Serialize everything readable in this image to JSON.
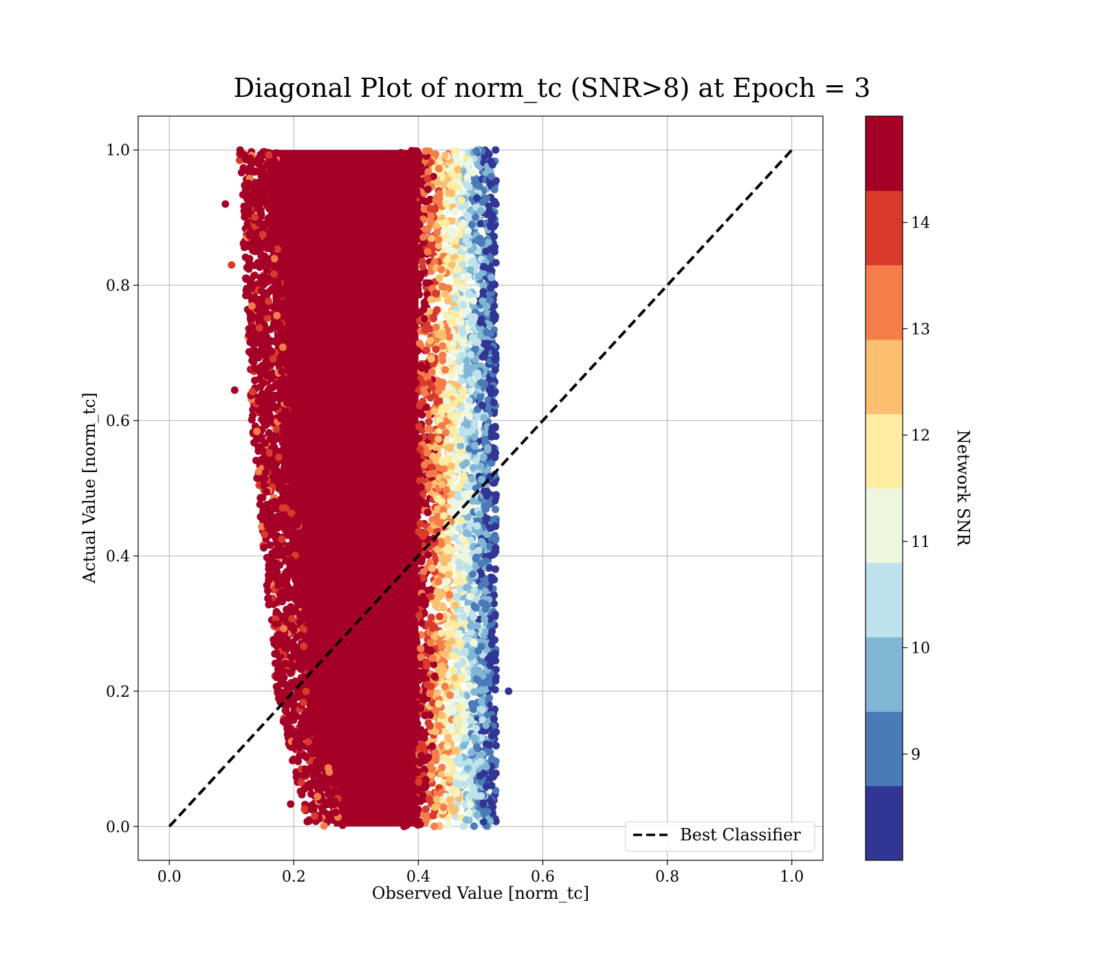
{
  "chart_data": {
    "type": "scatter",
    "title": "Diagonal Plot of norm_tc (SNR>8) at Epoch = 3",
    "xlabel": "Observed Value [norm_tc]",
    "ylabel": "Actual Value [norm_tc]",
    "xlim": [
      -0.05,
      1.05
    ],
    "ylim": [
      -0.05,
      1.05
    ],
    "x_ticks": [
      "0.0",
      "0.2",
      "0.4",
      "0.6",
      "0.8",
      "1.0"
    ],
    "y_ticks": [
      "0.0",
      "0.2",
      "0.4",
      "0.6",
      "0.8",
      "1.0"
    ],
    "grid": true,
    "legend_position": "lower-right",
    "series": [
      {
        "name": "Best Classifier",
        "style": "dashed",
        "color": "#000000",
        "x": [
          0.0,
          1.0
        ],
        "y": [
          0.0,
          1.0
        ]
      }
    ],
    "scatter_cloud": {
      "description_color_by": "Network SNR",
      "x_band_by_y": [
        {
          "y": 1.0,
          "x_min": 0.13,
          "x_max": 0.52
        },
        {
          "y": 0.8,
          "x_min": 0.14,
          "x_max": 0.52
        },
        {
          "y": 0.6,
          "x_min": 0.15,
          "x_max": 0.52
        },
        {
          "y": 0.4,
          "x_min": 0.17,
          "x_max": 0.52
        },
        {
          "y": 0.2,
          "x_min": 0.19,
          "x_max": 0.52
        },
        {
          "y": 0.0,
          "x_min": 0.24,
          "x_max": 0.52
        }
      ],
      "outliers": [
        {
          "x": 0.09,
          "y": 0.92
        },
        {
          "x": 0.1,
          "y": 0.83
        },
        {
          "x": 0.105,
          "y": 0.645
        },
        {
          "x": 0.545,
          "y": 0.2
        },
        {
          "x": 0.195,
          "y": 0.033
        }
      ]
    },
    "colorbar": {
      "label": "Network SNR",
      "min": 8.0,
      "max": 15.0,
      "ticks": [
        "9",
        "10",
        "11",
        "12",
        "13",
        "14"
      ],
      "tick_values": [
        9,
        10,
        11,
        12,
        13,
        14
      ],
      "colors": [
        "#313695",
        "#4575b4",
        "#74add1",
        "#abd9e9",
        "#e0f3f8",
        "#fee090",
        "#fdae61",
        "#f46d43",
        "#d73027",
        "#a50026"
      ],
      "band_colors_bottom_to_top": [
        "#313695",
        "#4a7ab7",
        "#82b6d5",
        "#bde2ec",
        "#edf6df",
        "#feeda3",
        "#fcbe6f",
        "#f47d4a",
        "#d83a2c",
        "#a50026"
      ]
    }
  }
}
